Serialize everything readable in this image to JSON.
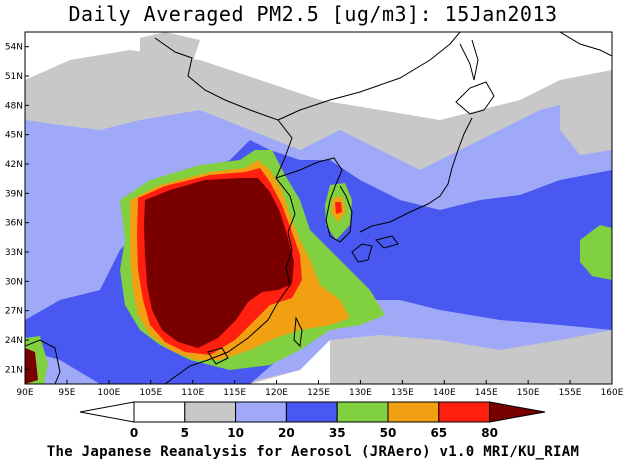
{
  "title": "Daily Averaged PM2.5 [ug/m3]: 15Jan2013",
  "credit": "The Japanese Reanalysis for Aerosol (JRAero) v1.0 MRI/KU_RIAM",
  "map": {
    "lon_range": [
      90,
      160
    ],
    "lat_range": [
      19.5,
      55.5
    ],
    "x_ticks": [
      "90E",
      "95E",
      "100E",
      "105E",
      "110E",
      "115E",
      "120E",
      "125E",
      "130E",
      "135E",
      "140E",
      "145E",
      "150E",
      "155E",
      "160E"
    ],
    "y_ticks": [
      "21N",
      "24N",
      "27N",
      "30N",
      "33N",
      "36N",
      "39N",
      "42N",
      "45N",
      "48N",
      "51N",
      "54N"
    ]
  },
  "colorbar": {
    "levels": [
      "0",
      "5",
      "10",
      "20",
      "35",
      "50",
      "65",
      "80"
    ],
    "colors": [
      "#ffffff",
      "#c8c8c8",
      "#a0a8f8",
      "#4858f0",
      "#80d040",
      "#f0a010",
      "#ff2010",
      "#7a0000"
    ]
  }
}
